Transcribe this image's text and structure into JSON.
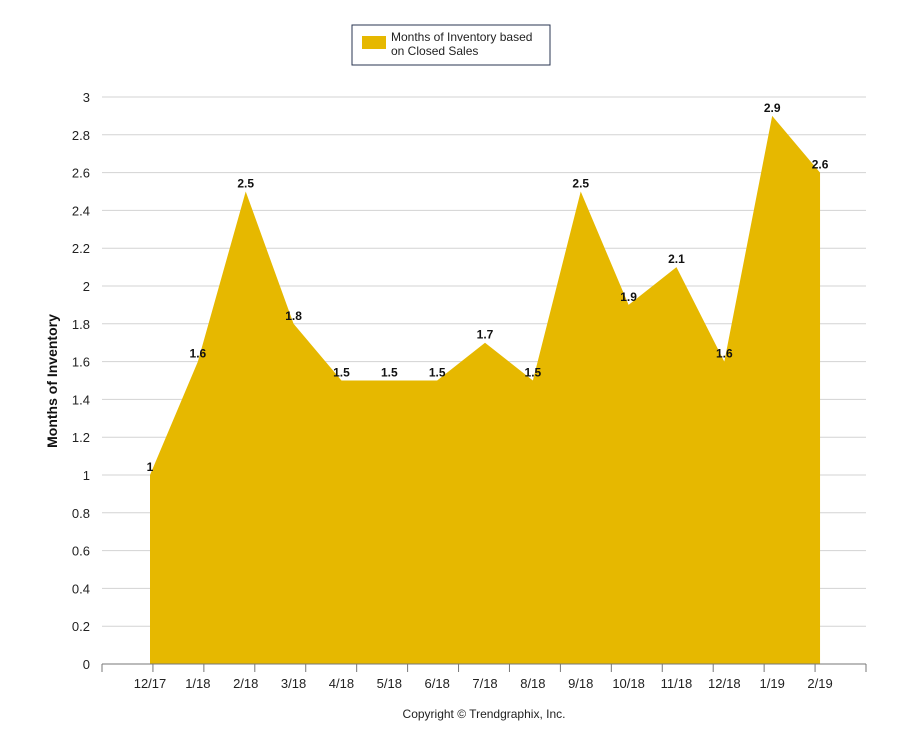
{
  "chart_data": {
    "type": "area",
    "categories": [
      "12/17",
      "1/18",
      "2/18",
      "3/18",
      "4/18",
      "5/18",
      "6/18",
      "7/18",
      "8/18",
      "9/18",
      "10/18",
      "11/18",
      "12/18",
      "1/19",
      "2/19"
    ],
    "series": [
      {
        "name": "Months of Inventory based on Closed Sales",
        "values": [
          1,
          1.6,
          2.5,
          1.8,
          1.5,
          1.5,
          1.5,
          1.7,
          1.5,
          2.5,
          1.9,
          2.1,
          1.6,
          2.9,
          2.6
        ],
        "color": "#e6b800"
      }
    ],
    "data_labels": [
      "1",
      "1.6",
      "2.5",
      "1.8",
      "1.5",
      "1.5",
      "1.5",
      "1.7",
      "1.5",
      "2.5",
      "1.9",
      "2.1",
      "1.6",
      "2.9",
      "2.6"
    ],
    "ylabel": "Months of Inventory",
    "xlabel": "",
    "ylim": [
      0,
      3
    ],
    "yticks": [
      0,
      0.2,
      0.4,
      0.6,
      0.8,
      1,
      1.2,
      1.4,
      1.6,
      1.8,
      2,
      2.2,
      2.4,
      2.6,
      2.8,
      3
    ],
    "ytick_labels": [
      "0",
      "0.2",
      "0.4",
      "0.6",
      "0.8",
      "1",
      "1.2",
      "1.4",
      "1.6",
      "1.8",
      "2",
      "2.2",
      "2.4",
      "2.6",
      "2.8",
      "3"
    ],
    "grid": true,
    "legend": {
      "placement": "top-center",
      "line1": "Months of Inventory based",
      "line2": "on Closed Sales"
    },
    "footer": "Copyright © Trendgraphix, Inc."
  }
}
